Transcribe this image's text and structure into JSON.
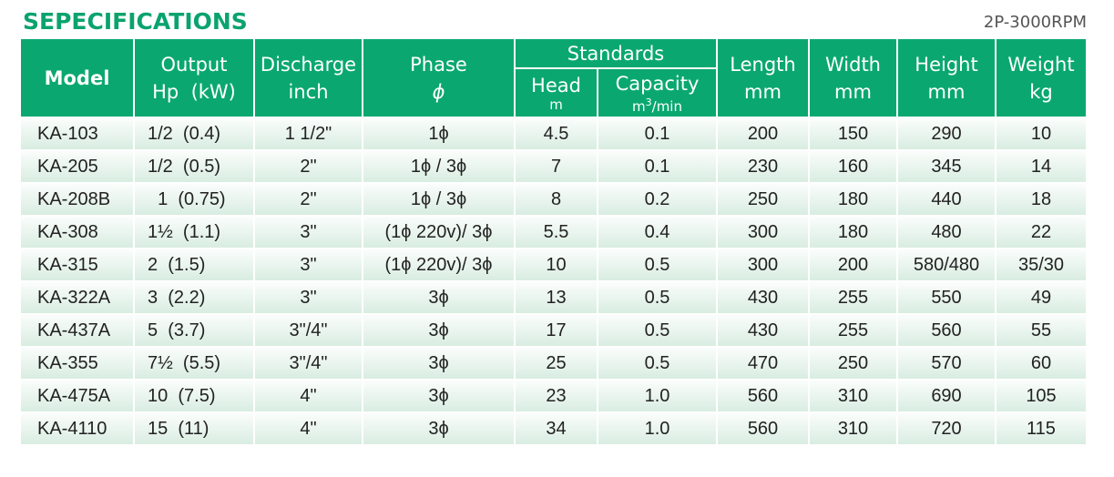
{
  "title": "SEPECIFICATIONS",
  "subtitle": "2P-3000RPM",
  "headers": {
    "model": "Model",
    "output": "Output",
    "output_unit": "Hp  (kW)",
    "discharge": "Discharge",
    "discharge_unit": "inch",
    "phase": "Phase",
    "phase_unit": "ϕ",
    "standards": "Standards",
    "head": "Head",
    "head_unit": "m",
    "capacity": "Capacity",
    "capacity_unit_a": "m",
    "capacity_unit_sup": "3",
    "capacity_unit_b": "/min",
    "length": "Length",
    "length_unit": "mm",
    "width": "Width",
    "width_unit": "mm",
    "height": "Height",
    "height_unit": "mm",
    "weight": "Weight",
    "weight_unit": "kg"
  },
  "rows": [
    [
      "KA-103",
      "1/2  (0.4)",
      "1 1/2\"",
      "1ϕ",
      "4.5",
      "0.1",
      "200",
      "150",
      "290",
      "10"
    ],
    [
      "KA-205",
      "1/2  (0.5)",
      "2\"",
      "1ϕ / 3ϕ",
      "7",
      "0.1",
      "230",
      "160",
      "345",
      "14"
    ],
    [
      "KA-208B",
      "  1  (0.75)",
      "2\"",
      "1ϕ / 3ϕ",
      "8",
      "0.2",
      "250",
      "180",
      "440",
      "18"
    ],
    [
      "KA-308",
      "1½  (1.1)",
      "3\"",
      "(1ϕ 220v)/ 3ϕ",
      "5.5",
      "0.4",
      "300",
      "180",
      "480",
      "22"
    ],
    [
      "KA-315",
      "2  (1.5)",
      "3\"",
      "(1ϕ 220v)/ 3ϕ",
      "10",
      "0.5",
      "300",
      "200",
      "580/480",
      "35/30"
    ],
    [
      "KA-322A",
      "3  (2.2)",
      "3\"",
      "3ϕ",
      "13",
      "0.5",
      "430",
      "255",
      "550",
      "49"
    ],
    [
      "KA-437A",
      "5  (3.7)",
      "3\"/4\"",
      "3ϕ",
      "17",
      "0.5",
      "430",
      "255",
      "560",
      "55"
    ],
    [
      "KA-355",
      "7½  (5.5)",
      "3\"/4\"",
      "3ϕ",
      "25",
      "0.5",
      "470",
      "250",
      "570",
      "60"
    ],
    [
      "KA-475A",
      "10  (7.5)",
      "4\"",
      "3ϕ",
      "23",
      "1.0",
      "560",
      "310",
      "690",
      "105"
    ],
    [
      "KA-4110",
      "15  (11)",
      "4\"",
      "3ϕ",
      "34",
      "1.0",
      "560",
      "310",
      "720",
      "115"
    ]
  ]
}
